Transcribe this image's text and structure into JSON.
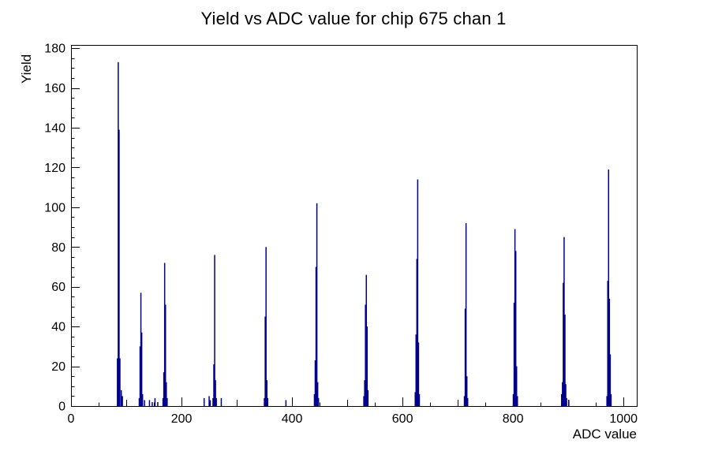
{
  "chart_data": {
    "type": "bar",
    "title": "Yield vs ADC value for chip 675 chan 1",
    "xlabel": "ADC value",
    "ylabel": "Yield",
    "xlim": [
      0,
      1024
    ],
    "ylim": [
      0,
      181.65
    ],
    "x_tick_labels": [
      0,
      200,
      400,
      600,
      800,
      1000
    ],
    "x_medium_step": 100,
    "x_minor_step": 50,
    "y_tick_labels": [
      0,
      20,
      40,
      60,
      80,
      100,
      120,
      140,
      160,
      180
    ],
    "y_minor_step": 5,
    "grid": false,
    "legend": null,
    "line_color": "#00008B",
    "frame_color": "#000000",
    "background": "#ffffff",
    "bin_width_adc": 2,
    "peaks": [
      {
        "adc": 86,
        "yield": 173,
        "bars": [
          [
            84,
            24
          ],
          [
            85.5,
            173
          ],
          [
            87,
            139
          ],
          [
            88.5,
            24
          ],
          [
            91,
            8
          ],
          [
            93,
            5
          ]
        ]
      },
      {
        "adc": 127,
        "yield": 57,
        "bars": [
          [
            123.5,
            4
          ],
          [
            125,
            30
          ],
          [
            126.5,
            57
          ],
          [
            128,
            37
          ],
          [
            129.5,
            6
          ]
        ]
      },
      {
        "adc": 170,
        "yield": 72,
        "bars": [
          [
            166.5,
            4
          ],
          [
            168,
            17
          ],
          [
            169.5,
            72
          ],
          [
            171,
            51
          ],
          [
            172.5,
            12
          ],
          [
            174,
            4
          ]
        ]
      },
      {
        "adc": 260,
        "yield": 76,
        "bars": [
          [
            257,
            4
          ],
          [
            258.5,
            21
          ],
          [
            260,
            76
          ],
          [
            261.5,
            13
          ],
          [
            263,
            4
          ]
        ]
      },
      {
        "adc": 353,
        "yield": 80,
        "bars": [
          [
            350,
            4
          ],
          [
            351.5,
            45
          ],
          [
            353,
            80
          ],
          [
            354.5,
            13
          ],
          [
            356,
            4
          ]
        ]
      },
      {
        "adc": 445,
        "yield": 102,
        "bars": [
          [
            440.5,
            6
          ],
          [
            442,
            23
          ],
          [
            443.5,
            70
          ],
          [
            445,
            102
          ],
          [
            446.5,
            12
          ],
          [
            448,
            4
          ]
        ]
      },
      {
        "adc": 534,
        "yield": 66,
        "bars": [
          [
            530,
            5
          ],
          [
            531.5,
            13
          ],
          [
            533,
            51
          ],
          [
            534.5,
            66
          ],
          [
            536,
            40
          ],
          [
            537.5,
            8
          ]
        ]
      },
      {
        "adc": 627,
        "yield": 114,
        "bars": [
          [
            623,
            7
          ],
          [
            624.5,
            36
          ],
          [
            626,
            74
          ],
          [
            627.5,
            114
          ],
          [
            629,
            32
          ],
          [
            630.5,
            6
          ]
        ]
      },
      {
        "adc": 716,
        "yield": 92,
        "bars": [
          [
            712,
            5
          ],
          [
            713.5,
            49
          ],
          [
            715,
            92
          ],
          [
            716.5,
            15
          ],
          [
            718,
            4
          ]
        ]
      },
      {
        "adc": 804,
        "yield": 89,
        "bars": [
          [
            800.5,
            6
          ],
          [
            802,
            52
          ],
          [
            803.5,
            89
          ],
          [
            805,
            78
          ],
          [
            806.5,
            20
          ],
          [
            808,
            5
          ]
        ]
      },
      {
        "adc": 892,
        "yield": 85,
        "bars": [
          [
            888,
            6
          ],
          [
            889.5,
            12
          ],
          [
            891,
            62
          ],
          [
            892.5,
            85
          ],
          [
            894,
            46
          ],
          [
            895.5,
            11
          ],
          [
            897,
            4
          ]
        ]
      },
      {
        "adc": 974,
        "yield": 119,
        "bars": [
          [
            970,
            5
          ],
          [
            971.5,
            63
          ],
          [
            973,
            119
          ],
          [
            974.5,
            54
          ],
          [
            976,
            26
          ],
          [
            977.5,
            6
          ]
        ]
      }
    ],
    "noise_bars": [
      [
        133,
        3
      ],
      [
        142,
        3
      ],
      [
        147,
        2
      ],
      [
        152,
        4
      ],
      [
        157,
        2
      ],
      [
        241,
        4
      ],
      [
        250,
        5
      ],
      [
        252,
        3
      ],
      [
        272,
        4
      ],
      [
        389,
        3
      ],
      [
        901,
        3
      ]
    ]
  }
}
